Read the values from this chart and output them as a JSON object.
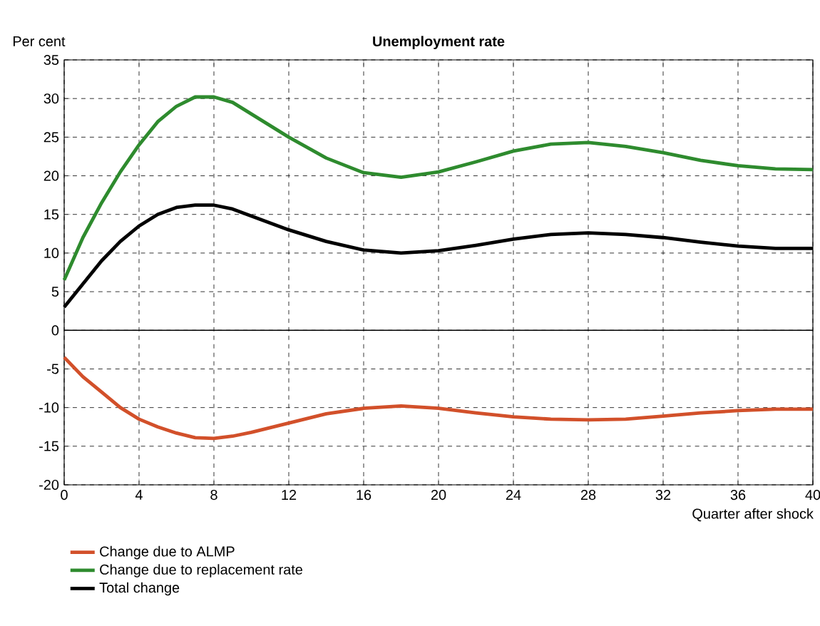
{
  "chart_data": {
    "type": "line",
    "title": "Unemployment rate",
    "ylabel": "Per cent",
    "xlabel": "Quarter after shock",
    "x": [
      0,
      1,
      2,
      3,
      4,
      5,
      6,
      7,
      8,
      9,
      10,
      12,
      14,
      16,
      18,
      20,
      22,
      24,
      26,
      28,
      30,
      32,
      34,
      36,
      38,
      40
    ],
    "series": [
      {
        "name": "Change due to ALMP",
        "color": "#d2502a",
        "values": [
          -3.5,
          -6,
          -8,
          -10,
          -11.5,
          -12.5,
          -13.3,
          -13.9,
          -14,
          -13.7,
          -13.2,
          -12,
          -10.8,
          -10.1,
          -9.8,
          -10.1,
          -10.7,
          -11.2,
          -11.5,
          -11.6,
          -11.5,
          -11.1,
          -10.7,
          -10.4,
          -10.2,
          -10.2
        ]
      },
      {
        "name": "Change due to replacement rate",
        "color": "#2e8b2e",
        "values": [
          6.5,
          12,
          16.5,
          20.5,
          24,
          27,
          29,
          30.2,
          30.2,
          29.5,
          28,
          25,
          22.3,
          20.4,
          19.8,
          20.5,
          21.8,
          23.2,
          24.1,
          24.3,
          23.8,
          23,
          22,
          21.3,
          20.9,
          20.8
        ]
      },
      {
        "name": "Total change",
        "color": "#000000",
        "values": [
          3,
          6,
          9,
          11.5,
          13.5,
          15,
          15.9,
          16.2,
          16.2,
          15.7,
          14.8,
          13,
          11.5,
          10.4,
          10,
          10.3,
          11,
          11.8,
          12.4,
          12.6,
          12.4,
          12,
          11.4,
          10.9,
          10.6,
          10.6
        ]
      }
    ],
    "xlim": [
      0,
      40
    ],
    "xticks": [
      0,
      4,
      8,
      12,
      16,
      20,
      24,
      28,
      32,
      36,
      40
    ],
    "ylim": [
      -20,
      35
    ],
    "yticks": [
      -20,
      -15,
      -10,
      -5,
      0,
      5,
      10,
      15,
      20,
      25,
      30,
      35
    ],
    "ref_lines": [
      {
        "axis": "y",
        "value": 0,
        "color": "#000000"
      }
    ],
    "grid": true,
    "legend": "bottom left",
    "marker": "none",
    "line_style": "solid"
  }
}
